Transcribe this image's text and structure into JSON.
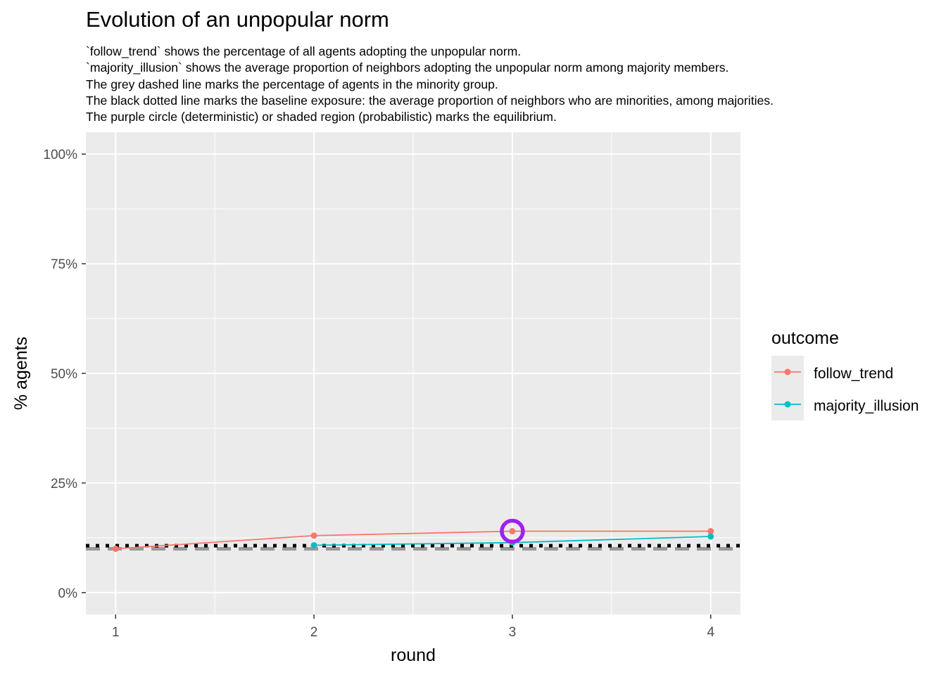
{
  "title": "Evolution of an unpopular norm",
  "subtitle_lines": [
    "`follow_trend` shows the percentage of all agents adopting the unpopular norm.",
    "`majority_illusion` shows the average proportion of neighbors adopting the unpopular norm among majority members.",
    "The grey dashed line marks the percentage of agents in the minority group.",
    "The black dotted line marks the baseline exposure: the average proportion of neighbors who are minorities, among majorities.",
    "The purple circle (deterministic) or shaded region (probabilistic) marks the equilibrium."
  ],
  "colors": {
    "panel": "#ebebeb",
    "grid": "#ffffff",
    "follow_trend": "#f8766d",
    "majority_illusion": "#00bfc4",
    "minority_line": "#999999",
    "baseline_line": "#000000",
    "equilibrium": "#a020f0"
  },
  "chart_data": {
    "type": "line",
    "title": "Evolution of an unpopular norm",
    "xlabel": "round",
    "ylabel": "% agents",
    "x": [
      1,
      2,
      3,
      4
    ],
    "x_ticks": [
      "1",
      "2",
      "3",
      "4"
    ],
    "y_ticks": [
      0,
      25,
      50,
      75,
      100
    ],
    "y_tick_labels": [
      "0%",
      "25%",
      "50%",
      "75%",
      "100%"
    ],
    "xlim": [
      0.85,
      4.15
    ],
    "ylim": [
      -5,
      105
    ],
    "grid": true,
    "legend_title": "outcome",
    "legend_position": "right",
    "series": [
      {
        "name": "follow_trend",
        "x": [
          1,
          2,
          3,
          4
        ],
        "values": [
          10,
          13,
          14,
          14
        ]
      },
      {
        "name": "majority_illusion",
        "x": [
          2,
          3,
          4
        ],
        "values": [
          10.8,
          11.4,
          12.8
        ]
      }
    ],
    "reference_lines": {
      "minority_share": 10,
      "baseline_exposure": 10.7
    },
    "equilibrium": {
      "x": 3,
      "y": 14
    }
  }
}
